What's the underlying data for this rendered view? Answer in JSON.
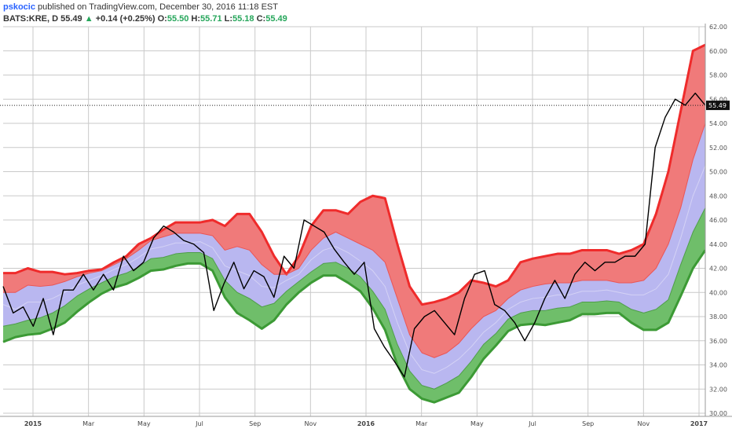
{
  "header": {
    "author": "pskocic",
    "published_text": "published on TradingView.com, December 30, 2016 11:18 EST",
    "symbol": "BATS:KRE, D",
    "last": "55.49",
    "change_arrow": "▲",
    "change": "+0.14 (+0.25%)",
    "open_label": "O:",
    "open": "55.50",
    "high_label": "H:",
    "high": "55.71",
    "low_label": "L:",
    "low": "55.18",
    "close_label": "C:",
    "close": "55.49"
  },
  "price_tag": "55.49",
  "colors": {
    "upper_band": "#ef2b2b",
    "upper_fill": "#f07a7a",
    "mid_fill": "#b9b7f0",
    "lower_fill": "#6fbe6a",
    "lower_band": "#3c9a35",
    "price": "#000000",
    "grid": "#c9c9c9",
    "up": "#26a65b"
  },
  "chart_data": {
    "type": "line",
    "ylim": [
      30,
      62
    ],
    "y_ticks": [
      "30.00",
      "32.00",
      "34.00",
      "36.00",
      "38.00",
      "40.00",
      "42.00",
      "44.00",
      "46.00",
      "48.00",
      "50.00",
      "52.00",
      "54.00",
      "56.00",
      "58.00",
      "60.00",
      "62.00"
    ],
    "x_ticks": [
      "2015",
      "Mar",
      "May",
      "Jul",
      "Sep",
      "Nov",
      "2016",
      "Mar",
      "May",
      "Jul",
      "Sep",
      "Nov",
      "2017"
    ],
    "last_price": 55.49,
    "series": [
      {
        "values": [
          41.6,
          41.6,
          42.0,
          41.7,
          41.7,
          41.5,
          41.6,
          41.8,
          41.9,
          42.5,
          43.0,
          44.0,
          44.5,
          45.2,
          45.8,
          45.8,
          45.8,
          46.0,
          45.5,
          46.5,
          46.5,
          45.0,
          43.0,
          41.5,
          43.0,
          45.5,
          46.8,
          46.8,
          46.5,
          47.5,
          48.0,
          47.8,
          44.0,
          40.5,
          39.0,
          39.2,
          39.5,
          40.0,
          41.0,
          40.8,
          40.5,
          41.0,
          42.5,
          42.8,
          43.0,
          43.2,
          43.2,
          43.5,
          43.5,
          43.5,
          43.2,
          43.5,
          44.0,
          46.5,
          50.0,
          55.0,
          60.0,
          60.5
        ]
      },
      {
        "values": [
          40.0,
          40.0,
          40.6,
          40.5,
          40.6,
          40.9,
          41.3,
          41.6,
          41.8,
          42.3,
          42.8,
          43.5,
          44.3,
          44.6,
          44.9,
          44.9,
          44.9,
          44.7,
          43.5,
          43.8,
          43.5,
          42.3,
          41.5,
          41.5,
          42.0,
          43.5,
          44.5,
          45.0,
          44.5,
          44.0,
          43.5,
          42.5,
          39.5,
          36.5,
          35.0,
          34.6,
          35.0,
          35.8,
          37.0,
          38.0,
          38.5,
          39.5,
          40.2,
          40.5,
          40.7,
          40.8,
          40.8,
          41.0,
          41.0,
          41.0,
          40.8,
          40.8,
          41.0,
          42.0,
          44.0,
          47.0,
          51.0,
          54.0
        ]
      },
      {
        "values": [
          39.0,
          38.6,
          39.2,
          39.2,
          39.5,
          40.0,
          40.6,
          41.0,
          41.4,
          41.9,
          42.3,
          42.9,
          43.6,
          43.8,
          44.1,
          44.1,
          44.2,
          43.7,
          42.2,
          41.8,
          41.4,
          40.5,
          40.4,
          41.0,
          41.5,
          42.7,
          43.5,
          43.8,
          43.3,
          42.6,
          41.8,
          40.5,
          37.5,
          35.0,
          33.6,
          33.3,
          33.8,
          34.5,
          35.5,
          36.7,
          37.5,
          38.6,
          39.2,
          39.5,
          39.6,
          39.8,
          39.8,
          40.1,
          40.1,
          40.2,
          40.0,
          39.8,
          39.8,
          40.3,
          41.5,
          44.5,
          48.0,
          50.5
        ]
      },
      {
        "values": [
          37.2,
          37.4,
          37.7,
          37.9,
          38.3,
          38.9,
          39.7,
          40.3,
          40.8,
          41.3,
          41.6,
          42.1,
          42.8,
          42.9,
          43.2,
          43.3,
          43.3,
          42.8,
          41.0,
          40.0,
          39.5,
          38.8,
          39.1,
          40.1,
          40.9,
          41.7,
          42.4,
          42.5,
          42.0,
          41.3,
          40.1,
          38.6,
          35.7,
          33.5,
          32.3,
          32.0,
          32.5,
          33.1,
          34.3,
          35.7,
          36.6,
          37.8,
          38.3,
          38.5,
          38.5,
          38.7,
          38.8,
          39.2,
          39.2,
          39.3,
          39.2,
          38.6,
          38.3,
          38.6,
          39.4,
          42.3,
          45.0,
          47.0
        ]
      },
      {
        "values": [
          35.9,
          36.3,
          36.5,
          36.6,
          37.0,
          37.5,
          38.4,
          39.2,
          39.9,
          40.4,
          40.7,
          41.2,
          41.8,
          41.9,
          42.2,
          42.4,
          42.4,
          41.8,
          39.6,
          38.3,
          37.7,
          37.0,
          37.7,
          39.0,
          40.0,
          40.8,
          41.4,
          41.4,
          40.8,
          40.1,
          38.7,
          36.9,
          34.0,
          32.0,
          31.2,
          30.9,
          31.3,
          31.7,
          33.0,
          34.5,
          35.6,
          36.8,
          37.3,
          37.4,
          37.3,
          37.5,
          37.7,
          38.2,
          38.2,
          38.3,
          38.3,
          37.5,
          36.9,
          36.9,
          37.5,
          39.7,
          42.0,
          43.5
        ]
      },
      {
        "values": [
          40.5,
          38.3,
          38.8,
          37.2,
          39.5,
          36.5,
          40.2,
          40.2,
          41.5,
          40.2,
          41.5,
          40.2,
          43.0,
          41.8,
          42.5,
          44.5,
          45.5,
          45.0,
          44.3,
          44.0,
          43.3,
          38.5,
          40.7,
          42.5,
          40.3,
          41.8,
          41.3,
          39.6,
          43.0,
          42.0,
          46.0,
          45.5,
          45.0,
          43.6,
          42.5,
          41.5,
          42.5,
          37.0,
          35.5,
          34.3,
          33.0,
          37.0,
          38.0,
          38.5,
          37.5,
          36.5,
          39.5,
          41.5,
          41.8,
          39.0,
          38.5,
          37.5,
          36.0,
          37.5,
          39.5,
          41.0,
          39.5,
          41.5,
          42.5,
          41.8,
          42.5,
          42.5,
          43.0,
          43.0,
          44.0,
          52.0,
          54.5,
          56.0,
          55.5,
          56.5,
          55.49
        ]
      }
    ]
  }
}
